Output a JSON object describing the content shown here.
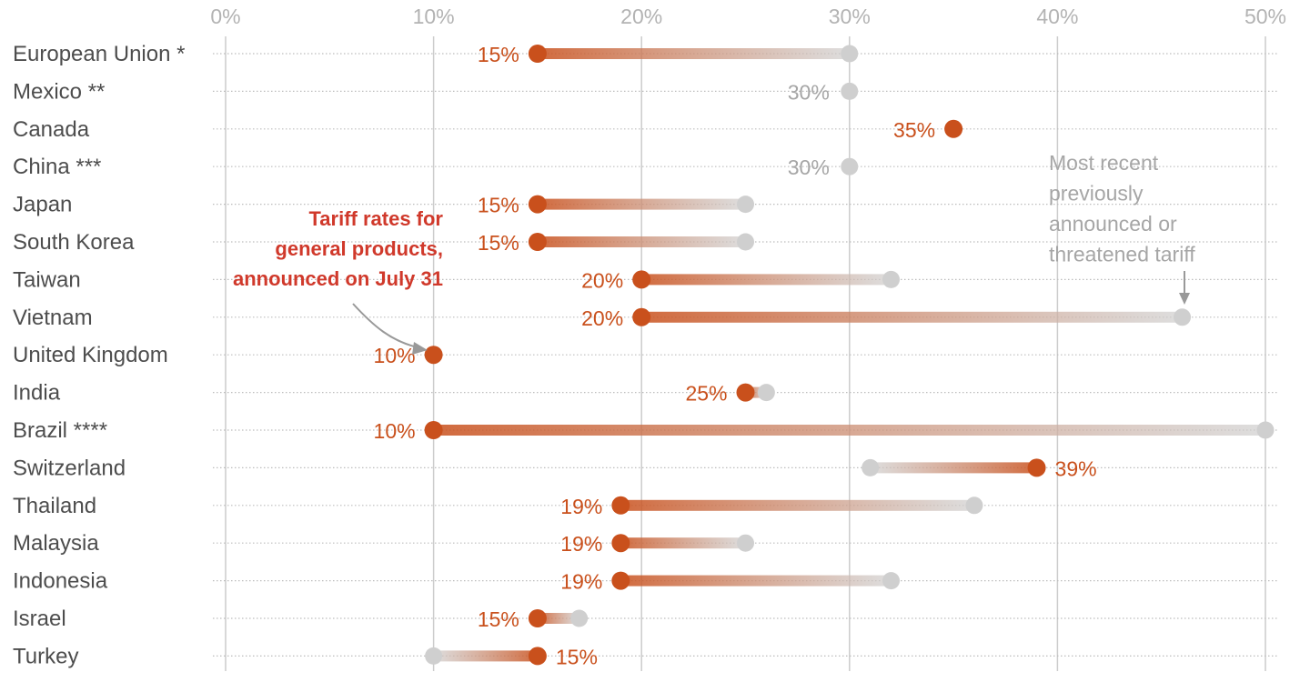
{
  "chart_data": {
    "type": "dumbbell",
    "title": "",
    "xlabel": "",
    "ylabel": "",
    "xlim": [
      0,
      50
    ],
    "x_ticks": [
      "0%",
      "10%",
      "20%",
      "30%",
      "40%",
      "50%"
    ],
    "grid": true,
    "legend": "none",
    "series": [
      {
        "name": "Tariff rates for general products, announced on July 31",
        "key": "current"
      },
      {
        "name": "Most recent previously announced or threatened tariff",
        "key": "previous"
      }
    ],
    "rows": [
      {
        "country": "European Union *",
        "current": 15,
        "previous": 30,
        "label": "15%"
      },
      {
        "country": "Mexico **",
        "current": null,
        "previous": 30,
        "label": "30%"
      },
      {
        "country": "Canada",
        "current": 35,
        "previous": null,
        "label": "35%"
      },
      {
        "country": "China ***",
        "current": null,
        "previous": 30,
        "label": "30%"
      },
      {
        "country": "Japan",
        "current": 15,
        "previous": 25,
        "label": "15%"
      },
      {
        "country": "South Korea",
        "current": 15,
        "previous": 25,
        "label": "15%"
      },
      {
        "country": "Taiwan",
        "current": 20,
        "previous": 32,
        "label": "20%"
      },
      {
        "country": "Vietnam",
        "current": 20,
        "previous": 46,
        "label": "20%"
      },
      {
        "country": "United Kingdom",
        "current": 10,
        "previous": null,
        "label": "10%"
      },
      {
        "country": "India",
        "current": 25,
        "previous": 26,
        "label": "25%"
      },
      {
        "country": "Brazil ****",
        "current": 10,
        "previous": 50,
        "label": "10%"
      },
      {
        "country": "Switzerland",
        "current": 39,
        "previous": 31,
        "label": "39%"
      },
      {
        "country": "Thailand",
        "current": 19,
        "previous": 36,
        "label": "19%"
      },
      {
        "country": "Malaysia",
        "current": 19,
        "previous": 25,
        "label": "19%"
      },
      {
        "country": "Indonesia",
        "current": 19,
        "previous": 32,
        "label": "19%"
      },
      {
        "country": "Israel",
        "current": 15,
        "previous": 17,
        "label": "15%"
      },
      {
        "country": "Turkey",
        "current": 15,
        "previous": 10,
        "label": "15%"
      }
    ],
    "annotations": {
      "current": [
        "Tariff rates for",
        "general products,",
        "announced on July 31"
      ],
      "previous": [
        "Most recent",
        "previously",
        "announced or",
        "threatened tariff"
      ]
    }
  },
  "colors": {
    "current": "#c9501c",
    "current_text": "#c9501c",
    "previous": "#cfcfcf",
    "previous_text": "#a6a6a6",
    "annotation_red": "#d0392b",
    "category_text": "#4d4d4d",
    "tick_text": "#b3b3b3",
    "grid": "#cccccc",
    "dots": "#bdbdbd",
    "arrow": "#999999"
  }
}
